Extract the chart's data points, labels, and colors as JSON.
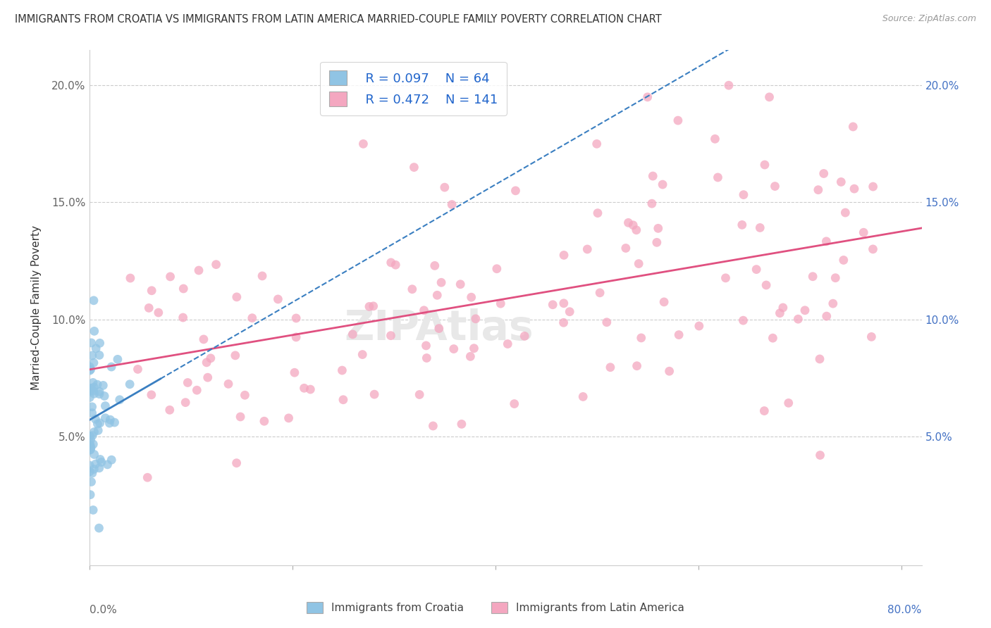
{
  "title": "IMMIGRANTS FROM CROATIA VS IMMIGRANTS FROM LATIN AMERICA MARRIED-COUPLE FAMILY POVERTY CORRELATION CHART",
  "source": "Source: ZipAtlas.com",
  "ylabel": "Married-Couple Family Poverty",
  "xlim": [
    0.0,
    0.82
  ],
  "ylim": [
    -0.005,
    0.215
  ],
  "ytick_vals": [
    0.0,
    0.05,
    0.1,
    0.15,
    0.2
  ],
  "ytick_labels_left": [
    "",
    "5.0%",
    "10.0%",
    "15.0%",
    "20.0%"
  ],
  "ytick_labels_right": [
    "",
    "5.0%",
    "10.0%",
    "15.0%",
    "20.0%"
  ],
  "legend_R_blue": "R = 0.097",
  "legend_N_blue": "N = 64",
  "legend_R_pink": "R = 0.472",
  "legend_N_pink": "N = 141",
  "legend_label_blue": "Immigrants from Croatia",
  "legend_label_pink": "Immigrants from Latin America",
  "blue_scatter_color": "#90c4e4",
  "pink_scatter_color": "#f4a7c0",
  "blue_line_color": "#3a7fc1",
  "pink_line_color": "#e05080",
  "grid_color": "#cccccc",
  "watermark_text": "ZIPAtlas",
  "background_color": "#ffffff",
  "title_color": "#333333",
  "ylabel_color": "#333333",
  "left_tick_color": "#666666",
  "right_tick_color": "#4472C4",
  "legend_text_color": "#2266CC",
  "source_color": "#999999"
}
